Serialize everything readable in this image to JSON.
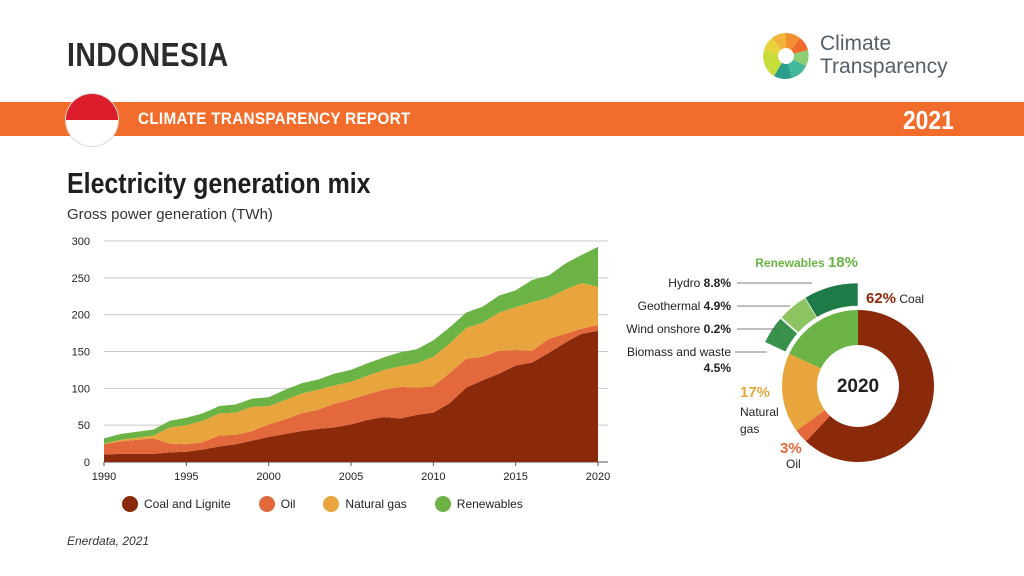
{
  "header": {
    "country": "INDONESIA",
    "logo_line1": "Climate",
    "logo_line2": "Transparency",
    "banner_title": "CLIMATE TRANSPARENCY REPORT",
    "banner_year": "2021"
  },
  "colors": {
    "coal": "#8b2a0b",
    "oil": "#e3683c",
    "gas": "#e8a53e",
    "renewables": "#6ab344",
    "banner": "#f26d2b",
    "hydro": "#1e7a46",
    "geothermal": "#8cc462",
    "wind": "#c6e0b0",
    "biomass": "#38924c"
  },
  "chart_data": [
    {
      "type": "area",
      "title": "Electricity generation mix",
      "ylabel": "Gross power generation (TWh)",
      "xlabel": "",
      "stacked": true,
      "ylim": [
        0,
        300
      ],
      "yticks": [
        0,
        50,
        100,
        150,
        200,
        250,
        300
      ],
      "xticks": [
        1990,
        1995,
        2000,
        2005,
        2010,
        2015,
        2020
      ],
      "grid": "horizontal",
      "legend_position": "bottom",
      "x": [
        1990,
        1991,
        1992,
        1993,
        1994,
        1995,
        1996,
        1997,
        1998,
        1999,
        2000,
        2001,
        2002,
        2003,
        2004,
        2005,
        2006,
        2007,
        2008,
        2009,
        2010,
        2011,
        2012,
        2013,
        2014,
        2015,
        2016,
        2017,
        2018,
        2019,
        2020
      ],
      "series": [
        {
          "name": "Coal and Lignite",
          "color": "#8b2a0b",
          "values": [
            10,
            11,
            11,
            11,
            13,
            14,
            17,
            21,
            24,
            29,
            34,
            38,
            42,
            45,
            47,
            51,
            57,
            61,
            59,
            64,
            67,
            80,
            101,
            111,
            120,
            131,
            135,
            148,
            162,
            174,
            178
          ]
        },
        {
          "name": "Oil",
          "color": "#e3683c",
          "values": [
            14,
            17,
            19,
            21,
            12,
            10,
            10,
            15,
            13,
            13,
            17,
            20,
            24,
            26,
            32,
            34,
            35,
            37,
            43,
            37,
            36,
            41,
            39,
            32,
            31,
            21,
            16,
            19,
            12,
            7,
            8
          ]
        },
        {
          "name": "Natural gas",
          "color": "#e8a53e",
          "values": [
            1,
            2,
            3,
            4,
            22,
            26,
            29,
            30,
            30,
            33,
            25,
            26,
            27,
            27,
            25,
            24,
            25,
            27,
            28,
            33,
            40,
            40,
            42,
            46,
            52,
            58,
            66,
            56,
            60,
            62,
            52
          ]
        },
        {
          "name": "Renewables",
          "color": "#6ab344",
          "values": [
            7,
            8,
            8,
            8,
            9,
            10,
            10,
            10,
            11,
            11,
            12,
            14,
            14,
            14,
            16,
            16,
            17,
            17,
            19,
            19,
            22,
            22,
            21,
            22,
            23,
            23,
            30,
            30,
            35,
            38,
            54
          ]
        }
      ]
    },
    {
      "type": "pie",
      "center_label": "2020",
      "slices": [
        {
          "name": "Coal",
          "value": 62,
          "label": "62%",
          "color": "#8b2a0b"
        },
        {
          "name": "Oil",
          "value": 3,
          "label": "3%",
          "color": "#e3683c"
        },
        {
          "name": "Natural gas",
          "label_line1": "Natural",
          "label_line2": "gas",
          "value": 17,
          "label": "17%",
          "color": "#e8a53e"
        },
        {
          "name": "Renewables",
          "value": 18,
          "label": "18%",
          "color": "#6ab344"
        }
      ],
      "renewables_breakdown": [
        {
          "name": "Biomass and waste",
          "value": 4.5,
          "label": "4.5%",
          "color": "#38924c"
        },
        {
          "name": "Wind onshore",
          "value": 0.2,
          "label": "0.2%",
          "color": "#c6e0b0"
        },
        {
          "name": "Geothermal",
          "value": 4.9,
          "label": "4.9%",
          "color": "#8cc462"
        },
        {
          "name": "Hydro",
          "value": 8.8,
          "label": "8.8%",
          "color": "#1e7a46"
        }
      ]
    }
  ],
  "source": "Enerdata, 2021"
}
